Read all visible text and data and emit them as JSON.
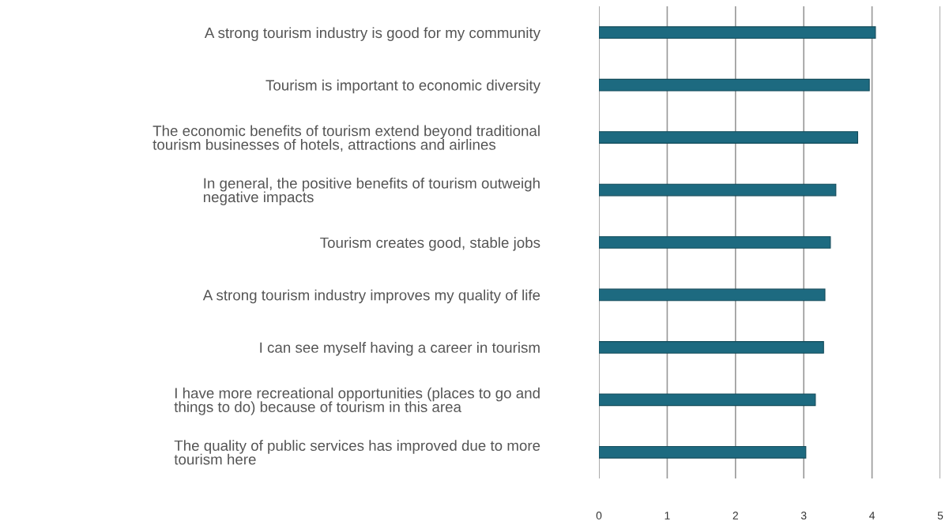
{
  "chart_data": {
    "type": "bar",
    "orientation": "horizontal",
    "categories": [
      "A strong tourism industry is good for my community",
      "Tourism is important to economic diversity",
      "The economic benefits of tourism extend beyond traditional\ntourism businesses of hotels, attractions and airlines",
      "In general, the positive benefits of tourism outweigh\nnegative impacts",
      "Tourism creates good, stable jobs",
      "A strong tourism industry improves my quality of life",
      "I can see myself having a career in tourism",
      "I have more recreational opportunities (places to go and\nthings to do) because of tourism in this area",
      "The quality of public services has improved due to more\ntourism here"
    ],
    "values": [
      4.05,
      3.96,
      3.79,
      3.47,
      3.39,
      3.31,
      3.29,
      3.17,
      3.03
    ],
    "color": "#1d6a80",
    "xlim": [
      0,
      5
    ],
    "xticks": [
      0,
      1,
      2,
      3,
      4,
      5
    ],
    "grid": "x"
  }
}
